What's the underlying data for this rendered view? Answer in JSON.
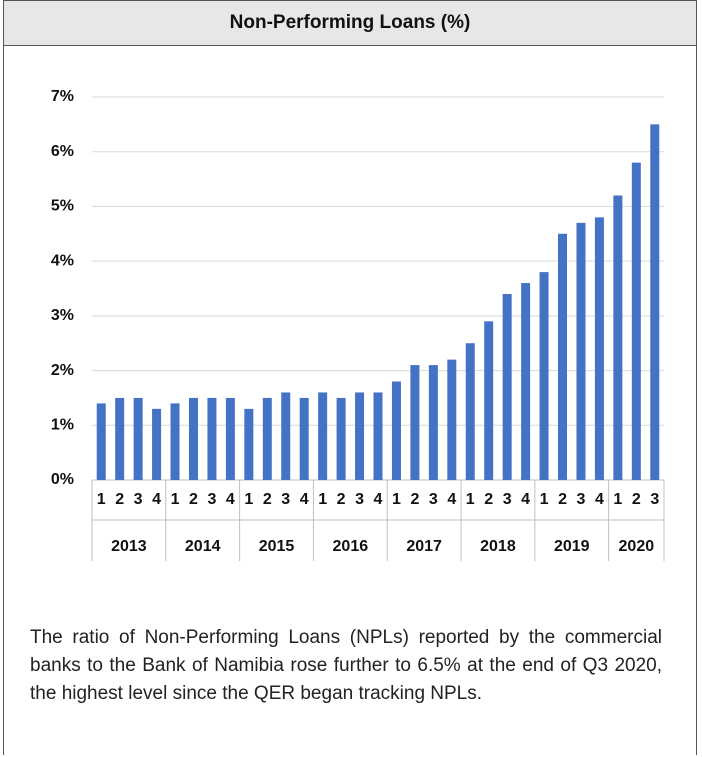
{
  "chart_data": {
    "type": "bar",
    "title": "Non-Performing Loans (%)",
    "categories": [
      "1",
      "2",
      "3",
      "4",
      "1",
      "2",
      "3",
      "4",
      "1",
      "2",
      "3",
      "4",
      "1",
      "2",
      "3",
      "4",
      "1",
      "2",
      "3",
      "4",
      "1",
      "2",
      "3",
      "4",
      "1",
      "2",
      "3",
      "4",
      "1",
      "2",
      "3"
    ],
    "category_groups": [
      "2013",
      "2014",
      "2015",
      "2016",
      "2017",
      "2018",
      "2019",
      "2020"
    ],
    "values": [
      1.4,
      1.5,
      1.5,
      1.3,
      1.4,
      1.5,
      1.5,
      1.5,
      1.3,
      1.5,
      1.6,
      1.5,
      1.6,
      1.5,
      1.6,
      1.6,
      1.8,
      2.1,
      2.1,
      2.2,
      2.5,
      2.9,
      3.4,
      3.6,
      3.8,
      4.5,
      4.7,
      4.8,
      5.2,
      5.8,
      6.5
    ],
    "color": "#4472c4",
    "ylim": [
      0,
      7
    ],
    "yticks": [
      {
        "value": 0,
        "label": "0%"
      },
      {
        "value": 1,
        "label": "1%"
      },
      {
        "value": 2,
        "label": "2%"
      },
      {
        "value": 3,
        "label": "3%"
      },
      {
        "value": 4,
        "label": "4%"
      },
      {
        "value": 5,
        "label": "5%"
      },
      {
        "value": 6,
        "label": "6%"
      },
      {
        "value": 7,
        "label": "7%"
      }
    ],
    "grid": true
  },
  "text": "The ratio of Non-Performing Loans (NPLs) reported by the commercial banks to the Bank of Namibia rose further to 6.5% at the end of Q3 2020, the highest level since the QER began tracking NPLs."
}
